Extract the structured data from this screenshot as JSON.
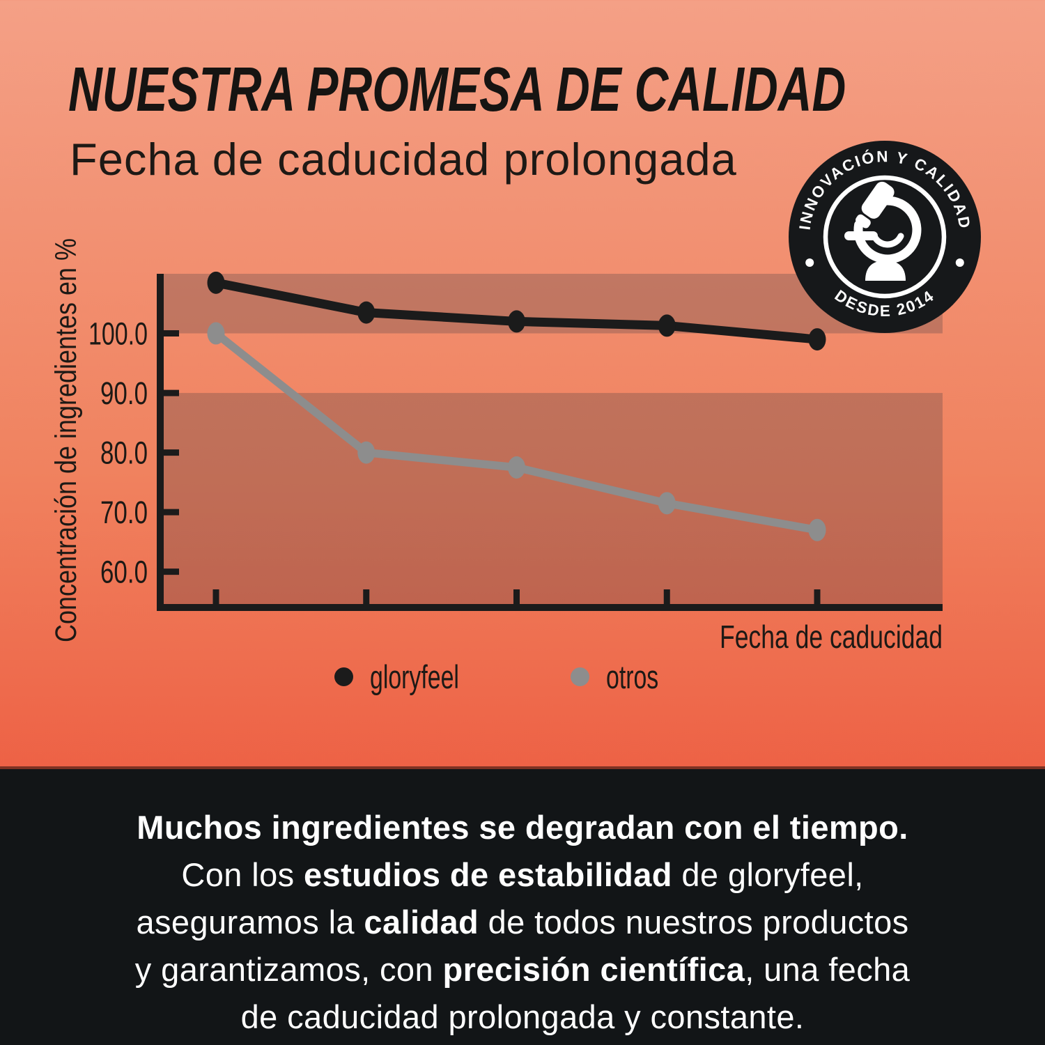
{
  "page": {
    "title": "NUESTRA PROMESA DE CALIDAD",
    "subtitle": "Fecha de caducidad prolongada"
  },
  "badge": {
    "arc_top": "INNOVACIÓN Y CALIDAD",
    "arc_bottom": "DESDE 2014",
    "icon": "microscope-icon"
  },
  "chart_data": {
    "type": "line",
    "title": "",
    "xlabel": "Fecha de caducidad",
    "ylabel": "Concentración de ingredientes en %",
    "x": [
      1,
      2,
      3,
      4,
      5
    ],
    "x_tick_labels": [
      "",
      "",
      "",
      "",
      ""
    ],
    "yticks": [
      100.0,
      90.0,
      80.0,
      70.0,
      60.0
    ],
    "ytick_labels": [
      "100.0",
      "90.0",
      "80.0",
      "70.0",
      "60.0"
    ],
    "ylim": [
      54,
      110
    ],
    "grid": false,
    "legend_position": "bottom",
    "shaded_bands": [
      [
        100,
        110
      ],
      [
        54,
        90
      ]
    ],
    "series": [
      {
        "name": "gloryfeel",
        "color": "#1B1B1B",
        "values": [
          108.5,
          103.5,
          102.0,
          101.3,
          99.0
        ]
      },
      {
        "name": "otros",
        "color": "#8D8D8D",
        "values": [
          100.0,
          80.0,
          77.5,
          71.5,
          67.0
        ]
      }
    ]
  },
  "footer": {
    "lines": [
      [
        {
          "text": "Muchos ingredientes se degradan con el tiempo.",
          "bold": true
        }
      ],
      [
        {
          "text": "Con los ",
          "bold": false
        },
        {
          "text": "estudios de estabilidad",
          "bold": true
        },
        {
          "text": " de gloryfeel,",
          "bold": false
        }
      ],
      [
        {
          "text": "aseguramos la ",
          "bold": false
        },
        {
          "text": "calidad",
          "bold": true
        },
        {
          "text": " de todos nuestros productos",
          "bold": false
        }
      ],
      [
        {
          "text": "y garantizamos, con ",
          "bold": false
        },
        {
          "text": "precisión científica",
          "bold": true
        },
        {
          "text": ", una fecha",
          "bold": false
        }
      ],
      [
        {
          "text": "de caducidad prolongada y constante.",
          "bold": false
        }
      ]
    ]
  },
  "colors": {
    "background_top": "#F4A086",
    "background_bottom": "#ED6044",
    "band_overlay": "rgba(70,60,70,0.28)",
    "axis": "#1B1B1B",
    "text_dark": "#1D1915",
    "footer_background": "#121517",
    "footer_text": "#FFFFFF",
    "badge_background": "#16181A",
    "badge_foreground": "#FFFFFF",
    "series_gloryfeel": "#1B1B1B",
    "series_otros": "#8D8D8D"
  }
}
